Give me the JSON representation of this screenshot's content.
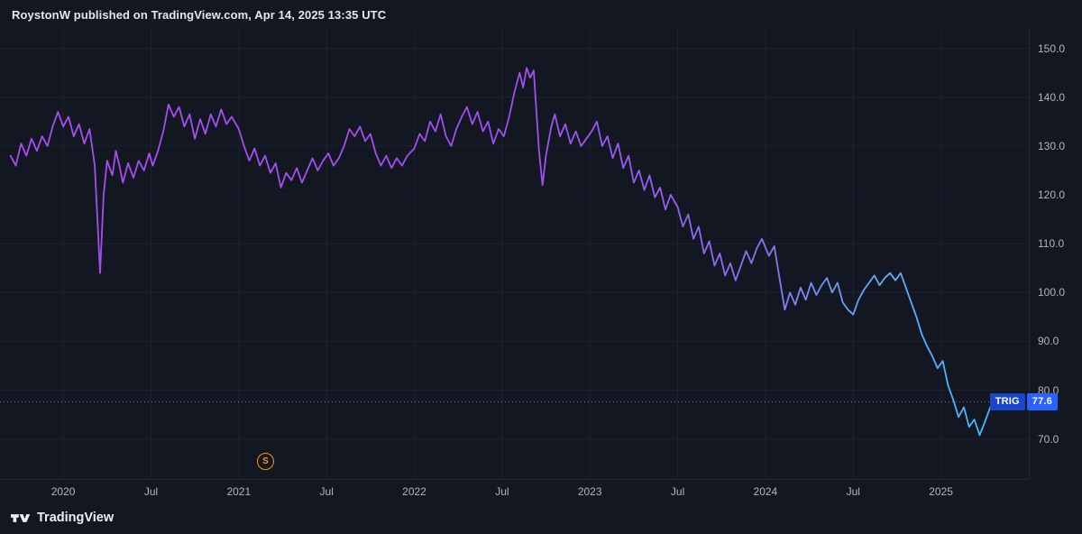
{
  "header": {
    "attribution": "RoystonW published on TradingView.com, Apr 14, 2025 13:35 UTC"
  },
  "footer": {
    "brand": "TradingView"
  },
  "price_label": {
    "symbol": "TRIG",
    "value": "77.6"
  },
  "event_marker": {
    "label": "S",
    "x_year": 2021.15,
    "color": "#f7931a"
  },
  "colors": {
    "background": "#131722",
    "grid": "#1d2231",
    "axis_text": "#b2b5be",
    "dotted_line": "#6b7fae",
    "symbol_box": "#1a46c8",
    "price_box": "#2962ff",
    "marker_orange": "#f7931a",
    "line_gradient": [
      {
        "offset": 0.0,
        "color": "#a84df2"
      },
      {
        "offset": 0.5,
        "color": "#a04ef0"
      },
      {
        "offset": 0.62,
        "color": "#945cee"
      },
      {
        "offset": 0.74,
        "color": "#8b72ef"
      },
      {
        "offset": 0.85,
        "color": "#64a9f4"
      },
      {
        "offset": 1.0,
        "color": "#3bbdf8"
      }
    ]
  },
  "chart_data": {
    "type": "line",
    "title": "",
    "xlabel": "",
    "ylabel": "",
    "grid": true,
    "legend_position": "none",
    "x_range": [
      2019.64,
      2025.5
    ],
    "y_range": [
      62,
      154
    ],
    "last_price": 77.6,
    "y_ticks": [
      {
        "value": 150,
        "label": "150.0"
      },
      {
        "value": 140,
        "label": "140.0"
      },
      {
        "value": 130,
        "label": "130.0"
      },
      {
        "value": 120,
        "label": "120.0"
      },
      {
        "value": 110,
        "label": "110.0"
      },
      {
        "value": 100,
        "label": "100.0"
      },
      {
        "value": 90,
        "label": "90.0"
      },
      {
        "value": 80,
        "label": "80.0"
      },
      {
        "value": 70,
        "label": "70.0"
      }
    ],
    "x_ticks": [
      {
        "x": 2020.0,
        "label": "2020"
      },
      {
        "x": 2020.5,
        "label": "Jul"
      },
      {
        "x": 2021.0,
        "label": "2021"
      },
      {
        "x": 2021.5,
        "label": "Jul"
      },
      {
        "x": 2022.0,
        "label": "2022"
      },
      {
        "x": 2022.5,
        "label": "Jul"
      },
      {
        "x": 2023.0,
        "label": "2023"
      },
      {
        "x": 2023.5,
        "label": "Jul"
      },
      {
        "x": 2024.0,
        "label": "2024"
      },
      {
        "x": 2024.5,
        "label": "Jul"
      },
      {
        "x": 2025.0,
        "label": "2025"
      }
    ],
    "series": [
      {
        "name": "TRIG",
        "points": [
          [
            2019.7,
            128
          ],
          [
            2019.73,
            126
          ],
          [
            2019.76,
            130.5
          ],
          [
            2019.79,
            128
          ],
          [
            2019.82,
            131.5
          ],
          [
            2019.85,
            129
          ],
          [
            2019.88,
            132
          ],
          [
            2019.91,
            130
          ],
          [
            2019.94,
            134
          ],
          [
            2019.97,
            137
          ],
          [
            2020.0,
            134
          ],
          [
            2020.03,
            136
          ],
          [
            2020.06,
            132
          ],
          [
            2020.09,
            134.5
          ],
          [
            2020.12,
            130.5
          ],
          [
            2020.15,
            133.5
          ],
          [
            2020.18,
            126
          ],
          [
            2020.21,
            104
          ],
          [
            2020.23,
            120
          ],
          [
            2020.25,
            127
          ],
          [
            2020.28,
            124
          ],
          [
            2020.3,
            129
          ],
          [
            2020.32,
            126
          ],
          [
            2020.34,
            122.5
          ],
          [
            2020.37,
            126.5
          ],
          [
            2020.4,
            123.5
          ],
          [
            2020.43,
            127
          ],
          [
            2020.46,
            125
          ],
          [
            2020.49,
            128.5
          ],
          [
            2020.51,
            126
          ],
          [
            2020.54,
            129
          ],
          [
            2020.57,
            133
          ],
          [
            2020.6,
            138.5
          ],
          [
            2020.63,
            136
          ],
          [
            2020.66,
            138
          ],
          [
            2020.69,
            134
          ],
          [
            2020.72,
            136.5
          ],
          [
            2020.75,
            131.5
          ],
          [
            2020.78,
            135.5
          ],
          [
            2020.81,
            132.5
          ],
          [
            2020.84,
            136.5
          ],
          [
            2020.87,
            134
          ],
          [
            2020.9,
            137.5
          ],
          [
            2020.93,
            134.5
          ],
          [
            2020.96,
            136
          ],
          [
            2021.0,
            133.5
          ],
          [
            2021.03,
            130
          ],
          [
            2021.06,
            127
          ],
          [
            2021.09,
            129.5
          ],
          [
            2021.12,
            126
          ],
          [
            2021.15,
            128
          ],
          [
            2021.18,
            124.5
          ],
          [
            2021.21,
            126.5
          ],
          [
            2021.24,
            121.5
          ],
          [
            2021.27,
            124.5
          ],
          [
            2021.3,
            123
          ],
          [
            2021.33,
            125.5
          ],
          [
            2021.36,
            122.5
          ],
          [
            2021.39,
            125
          ],
          [
            2021.42,
            127.5
          ],
          [
            2021.45,
            125
          ],
          [
            2021.48,
            127
          ],
          [
            2021.51,
            128.5
          ],
          [
            2021.54,
            126
          ],
          [
            2021.57,
            127.5
          ],
          [
            2021.6,
            130
          ],
          [
            2021.63,
            133.5
          ],
          [
            2021.66,
            132
          ],
          [
            2021.69,
            134
          ],
          [
            2021.72,
            131
          ],
          [
            2021.75,
            132.5
          ],
          [
            2021.78,
            128.5
          ],
          [
            2021.81,
            126
          ],
          [
            2021.84,
            128
          ],
          [
            2021.87,
            125.5
          ],
          [
            2021.9,
            127.5
          ],
          [
            2021.93,
            126
          ],
          [
            2021.96,
            128
          ],
          [
            2022.0,
            129.5
          ],
          [
            2022.03,
            132.5
          ],
          [
            2022.06,
            131
          ],
          [
            2022.09,
            135
          ],
          [
            2022.12,
            133
          ],
          [
            2022.15,
            136.5
          ],
          [
            2022.18,
            132
          ],
          [
            2022.21,
            130
          ],
          [
            2022.24,
            133.5
          ],
          [
            2022.27,
            136
          ],
          [
            2022.3,
            138
          ],
          [
            2022.33,
            134.5
          ],
          [
            2022.36,
            137
          ],
          [
            2022.39,
            133
          ],
          [
            2022.42,
            135
          ],
          [
            2022.45,
            130.5
          ],
          [
            2022.48,
            133.5
          ],
          [
            2022.51,
            132
          ],
          [
            2022.54,
            136
          ],
          [
            2022.57,
            141
          ],
          [
            2022.6,
            145
          ],
          [
            2022.62,
            142
          ],
          [
            2022.64,
            146
          ],
          [
            2022.66,
            144
          ],
          [
            2022.68,
            145.5
          ],
          [
            2022.71,
            129
          ],
          [
            2022.73,
            122
          ],
          [
            2022.75,
            128
          ],
          [
            2022.78,
            134
          ],
          [
            2022.8,
            136.5
          ],
          [
            2022.83,
            132
          ],
          [
            2022.86,
            134.5
          ],
          [
            2022.89,
            130.5
          ],
          [
            2022.92,
            133
          ],
          [
            2022.95,
            130
          ],
          [
            2022.98,
            131.5
          ],
          [
            2023.01,
            133
          ],
          [
            2023.04,
            135
          ],
          [
            2023.07,
            130
          ],
          [
            2023.1,
            132
          ],
          [
            2023.13,
            127.5
          ],
          [
            2023.16,
            130.5
          ],
          [
            2023.19,
            125.5
          ],
          [
            2023.22,
            128
          ],
          [
            2023.25,
            122.5
          ],
          [
            2023.28,
            125
          ],
          [
            2023.31,
            121
          ],
          [
            2023.34,
            124
          ],
          [
            2023.37,
            119.5
          ],
          [
            2023.4,
            121.5
          ],
          [
            2023.43,
            117
          ],
          [
            2023.46,
            120
          ],
          [
            2023.5,
            117.5
          ],
          [
            2023.53,
            113.5
          ],
          [
            2023.56,
            116
          ],
          [
            2023.59,
            111
          ],
          [
            2023.62,
            113.5
          ],
          [
            2023.65,
            108
          ],
          [
            2023.68,
            110.5
          ],
          [
            2023.71,
            105.5
          ],
          [
            2023.74,
            108
          ],
          [
            2023.77,
            103.5
          ],
          [
            2023.8,
            106
          ],
          [
            2023.83,
            102.5
          ],
          [
            2023.86,
            105.5
          ],
          [
            2023.89,
            108.5
          ],
          [
            2023.92,
            106
          ],
          [
            2023.95,
            109
          ],
          [
            2023.98,
            111
          ],
          [
            2024.02,
            107.5
          ],
          [
            2024.05,
            109.5
          ],
          [
            2024.08,
            103
          ],
          [
            2024.11,
            96.5
          ],
          [
            2024.14,
            100
          ],
          [
            2024.17,
            97.5
          ],
          [
            2024.2,
            101
          ],
          [
            2024.23,
            98.5
          ],
          [
            2024.26,
            102
          ],
          [
            2024.29,
            99.5
          ],
          [
            2024.32,
            101.5
          ],
          [
            2024.35,
            103
          ],
          [
            2024.38,
            100
          ],
          [
            2024.41,
            102
          ],
          [
            2024.44,
            98
          ],
          [
            2024.47,
            96.5
          ],
          [
            2024.5,
            95.5
          ],
          [
            2024.53,
            98.5
          ],
          [
            2024.56,
            100.5
          ],
          [
            2024.59,
            102
          ],
          [
            2024.62,
            103.5
          ],
          [
            2024.65,
            101.5
          ],
          [
            2024.68,
            103
          ],
          [
            2024.71,
            104
          ],
          [
            2024.74,
            102.5
          ],
          [
            2024.77,
            104
          ],
          [
            2024.8,
            101
          ],
          [
            2024.83,
            98
          ],
          [
            2024.86,
            95
          ],
          [
            2024.89,
            91.5
          ],
          [
            2024.92,
            89
          ],
          [
            2024.95,
            87
          ],
          [
            2024.98,
            84.5
          ],
          [
            2025.01,
            86
          ],
          [
            2025.04,
            81
          ],
          [
            2025.07,
            78
          ],
          [
            2025.1,
            74.5
          ],
          [
            2025.13,
            76.5
          ],
          [
            2025.16,
            72.5
          ],
          [
            2025.19,
            74
          ],
          [
            2025.22,
            70.8
          ],
          [
            2025.25,
            73.5
          ],
          [
            2025.28,
            76.5
          ],
          [
            2025.3,
            77.6
          ]
        ]
      }
    ]
  }
}
